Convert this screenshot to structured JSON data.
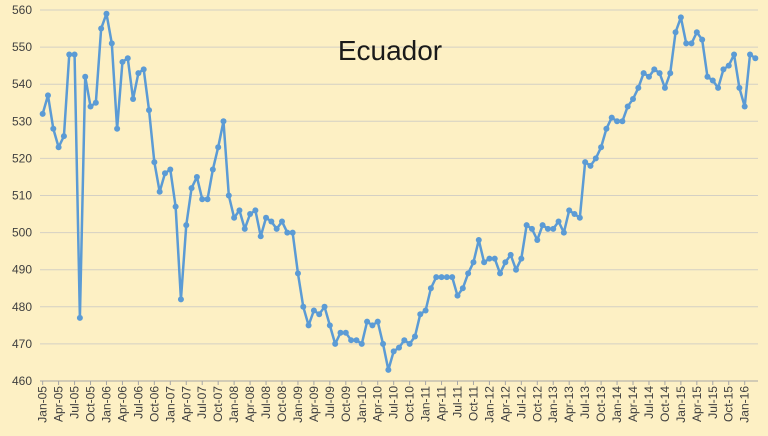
{
  "chart_data": {
    "type": "line",
    "title": "Ecuador",
    "xlabel": "",
    "ylabel": "",
    "ylim": [
      460,
      560
    ],
    "yticks": [
      460,
      470,
      480,
      490,
      500,
      510,
      520,
      530,
      540,
      550,
      560
    ],
    "grid": "horizontal",
    "legend": "none",
    "series_color": "#5b9bd5",
    "xticks": [
      "Jan-05",
      "Apr-05",
      "Jul-05",
      "Oct-05",
      "Jan-06",
      "Apr-06",
      "Jul-06",
      "Oct-06",
      "Jan-07",
      "Apr-07",
      "Jul-07",
      "Oct-07",
      "Jan-08",
      "Apr-08",
      "Jul-08",
      "Oct-08",
      "Jan-09",
      "Apr-09",
      "Jul-09",
      "Oct-09",
      "Jan-10",
      "Apr-10",
      "Jul-10",
      "Oct-10",
      "Jan-11",
      "Apr-11",
      "Jul-11",
      "Oct-11",
      "Jan-12",
      "Apr-12",
      "Jul-12",
      "Oct-12",
      "Jan-13",
      "Apr-13",
      "Jul-13",
      "Oct-13",
      "Jan-14",
      "Apr-14",
      "Jul-14",
      "Oct-14",
      "Jan-15",
      "Apr-15",
      "Jul-15",
      "Oct-15",
      "Jan-16"
    ],
    "series": [
      {
        "values": [
          532,
          537,
          528,
          523,
          526,
          548,
          548,
          477,
          542,
          534,
          535,
          555,
          559,
          551,
          528,
          546,
          547,
          536,
          543,
          544,
          533,
          519,
          511,
          516,
          517,
          507,
          482,
          502,
          512,
          515,
          509,
          509,
          517,
          523,
          530,
          510,
          504,
          506,
          501,
          505,
          506,
          499,
          504,
          503,
          501,
          503,
          500,
          500,
          489,
          480,
          475,
          479,
          478,
          480,
          475,
          470,
          473,
          473,
          471,
          471,
          470,
          476,
          475,
          476,
          470,
          463,
          468,
          469,
          471,
          470,
          472,
          478,
          479,
          485,
          488,
          488,
          488,
          488,
          483,
          485,
          489,
          492,
          498,
          492,
          493,
          493,
          489,
          492,
          494,
          490,
          493,
          502,
          501,
          498,
          502,
          501,
          501,
          503,
          500,
          506,
          505,
          504,
          519,
          518,
          520,
          523,
          528,
          531,
          530,
          530,
          534,
          536,
          539,
          543,
          542,
          544,
          543,
          539,
          543,
          554,
          558,
          551,
          551,
          554,
          552,
          542,
          541,
          539,
          544,
          545,
          548,
          539,
          534,
          548,
          547
        ]
      }
    ]
  }
}
